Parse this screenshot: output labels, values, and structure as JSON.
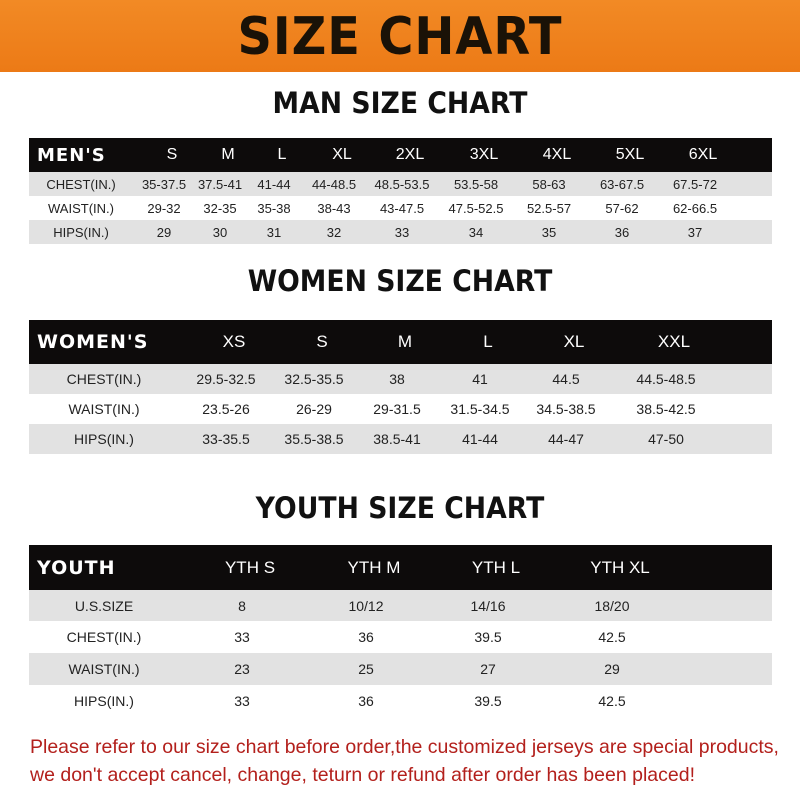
{
  "banner_title": "SIZE CHART",
  "men": {
    "title": "MAN SIZE CHART",
    "header": [
      "MEN'S",
      "S",
      "M",
      "L",
      "XL",
      "2XL",
      "3XL",
      "4XL",
      "5XL",
      "6XL"
    ],
    "rows": [
      [
        "CHEST(IN.)",
        "35-37.5",
        "37.5-41",
        "41-44",
        "44-48.5",
        "48.5-53.5",
        "53.5-58",
        "58-63",
        "63-67.5",
        "67.5-72"
      ],
      [
        "WAIST(IN.)",
        "29-32",
        "32-35",
        "35-38",
        "38-43",
        "43-47.5",
        "47.5-52.5",
        "52.5-57",
        "57-62",
        "62-66.5"
      ],
      [
        "HIPS(IN.)",
        "29",
        "30",
        "31",
        "32",
        "33",
        "34",
        "35",
        "36",
        "37"
      ]
    ]
  },
  "women": {
    "title": "WOMEN SIZE CHART",
    "header": [
      "WOMEN'S",
      "XS",
      "S",
      "M",
      "L",
      "XL",
      "XXL"
    ],
    "rows": [
      [
        "CHEST(IN.)",
        "29.5-32.5",
        "32.5-35.5",
        "38",
        "41",
        "44.5",
        "44.5-48.5"
      ],
      [
        "WAIST(IN.)",
        "23.5-26",
        "26-29",
        "29-31.5",
        "31.5-34.5",
        "34.5-38.5",
        "38.5-42.5"
      ],
      [
        "HIPS(IN.)",
        "33-35.5",
        "35.5-38.5",
        "38.5-41",
        "41-44",
        "44-47",
        "47-50"
      ]
    ]
  },
  "youth": {
    "title": "YOUTH SIZE CHART",
    "header": [
      "YOUTH",
      "YTH S",
      "YTH M",
      "YTH L",
      "YTH XL"
    ],
    "rows": [
      [
        "U.S.SIZE",
        "8",
        "10/12",
        "14/16",
        "18/20"
      ],
      [
        "CHEST(IN.)",
        "33",
        "36",
        "39.5",
        "42.5"
      ],
      [
        "WAIST(IN.)",
        "23",
        "25",
        "27",
        "29"
      ],
      [
        "HIPS(IN.)",
        "33",
        "36",
        "39.5",
        "42.5"
      ]
    ]
  },
  "footer": {
    "line1": "Please refer to our size chart before order,the customized jerseys are special products,",
    "line2": "we don't accept cancel, change, teturn or refund after order has been placed!"
  },
  "colors": {
    "banner": "#f0821d",
    "header_row": "#0d0b0b",
    "footer_text": "#b3201c"
  }
}
